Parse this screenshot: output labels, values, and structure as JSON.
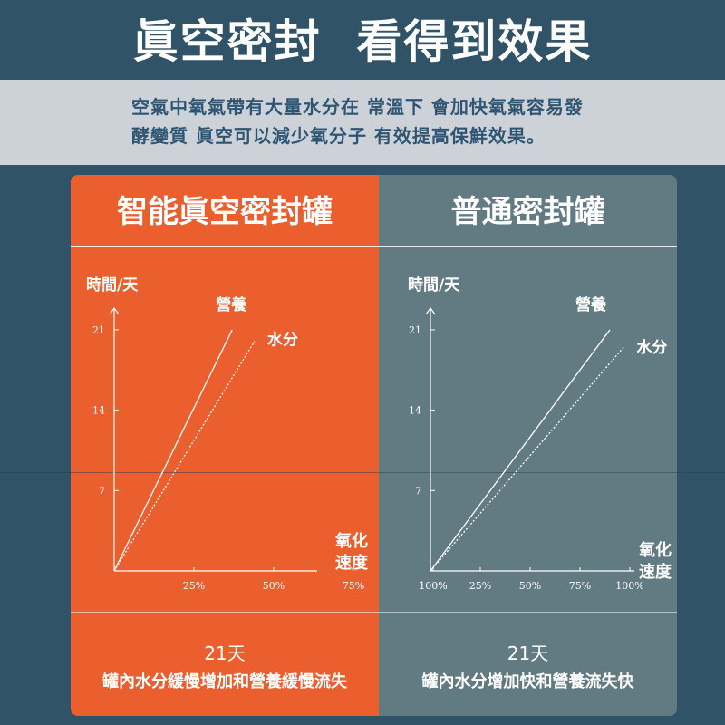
{
  "title": "眞空密封  看得到效果",
  "subtitle_line1": "空氣中氧氣帶有大量水分在 常溫下 會加快氧氣容易發",
  "subtitle_line2": "酵變質 眞空可以減少氧分子 有效提高保鮮效果。",
  "colors": {
    "background": "#305368",
    "band": "#cdd1d8",
    "left_panel": "#eb5e2d",
    "right_panel": "#627b82",
    "text_dark": "#2e5673"
  },
  "chart_data": [
    {
      "type": "line",
      "panel_title": "智能眞空密封罐",
      "ylabel": "時間/天",
      "xlabel": "氧化速度",
      "xlabel_lines": [
        "氧化",
        "速度"
      ],
      "x_ticks": [
        "25%",
        "50%",
        "75%",
        "100%"
      ],
      "y_ticks": [
        "7",
        "14",
        "21"
      ],
      "xlim": [
        0,
        125
      ],
      "ylim": [
        0,
        27
      ],
      "series": [
        {
          "name": "營養",
          "style": "solid",
          "points": [
            [
              0,
              0
            ],
            [
              37,
              21
            ]
          ]
        },
        {
          "name": "水分",
          "style": "dotted",
          "points": [
            [
              0,
              0
            ],
            [
              44,
              20
            ]
          ]
        }
      ],
      "days": "21天",
      "description": "罐內水分緩慢增加和營養緩慢流失"
    },
    {
      "type": "line",
      "panel_title": "普通密封罐",
      "ylabel": "時間/天",
      "xlabel": "氧化速度",
      "xlabel_lines": [
        "氧化",
        "速度"
      ],
      "x_ticks": [
        "25%",
        "50%",
        "75%",
        "100%"
      ],
      "y_ticks": [
        "7",
        "14",
        "21"
      ],
      "xlim": [
        0,
        125
      ],
      "ylim": [
        0,
        27
      ],
      "series": [
        {
          "name": "營養",
          "style": "solid",
          "points": [
            [
              0,
              0
            ],
            [
              90,
              21
            ]
          ]
        },
        {
          "name": "水分",
          "style": "dotted",
          "points": [
            [
              0,
              0
            ],
            [
              97,
              19.5
            ]
          ]
        }
      ],
      "days": "21天",
      "description": "罐內水分增加快和營養流失快"
    }
  ]
}
